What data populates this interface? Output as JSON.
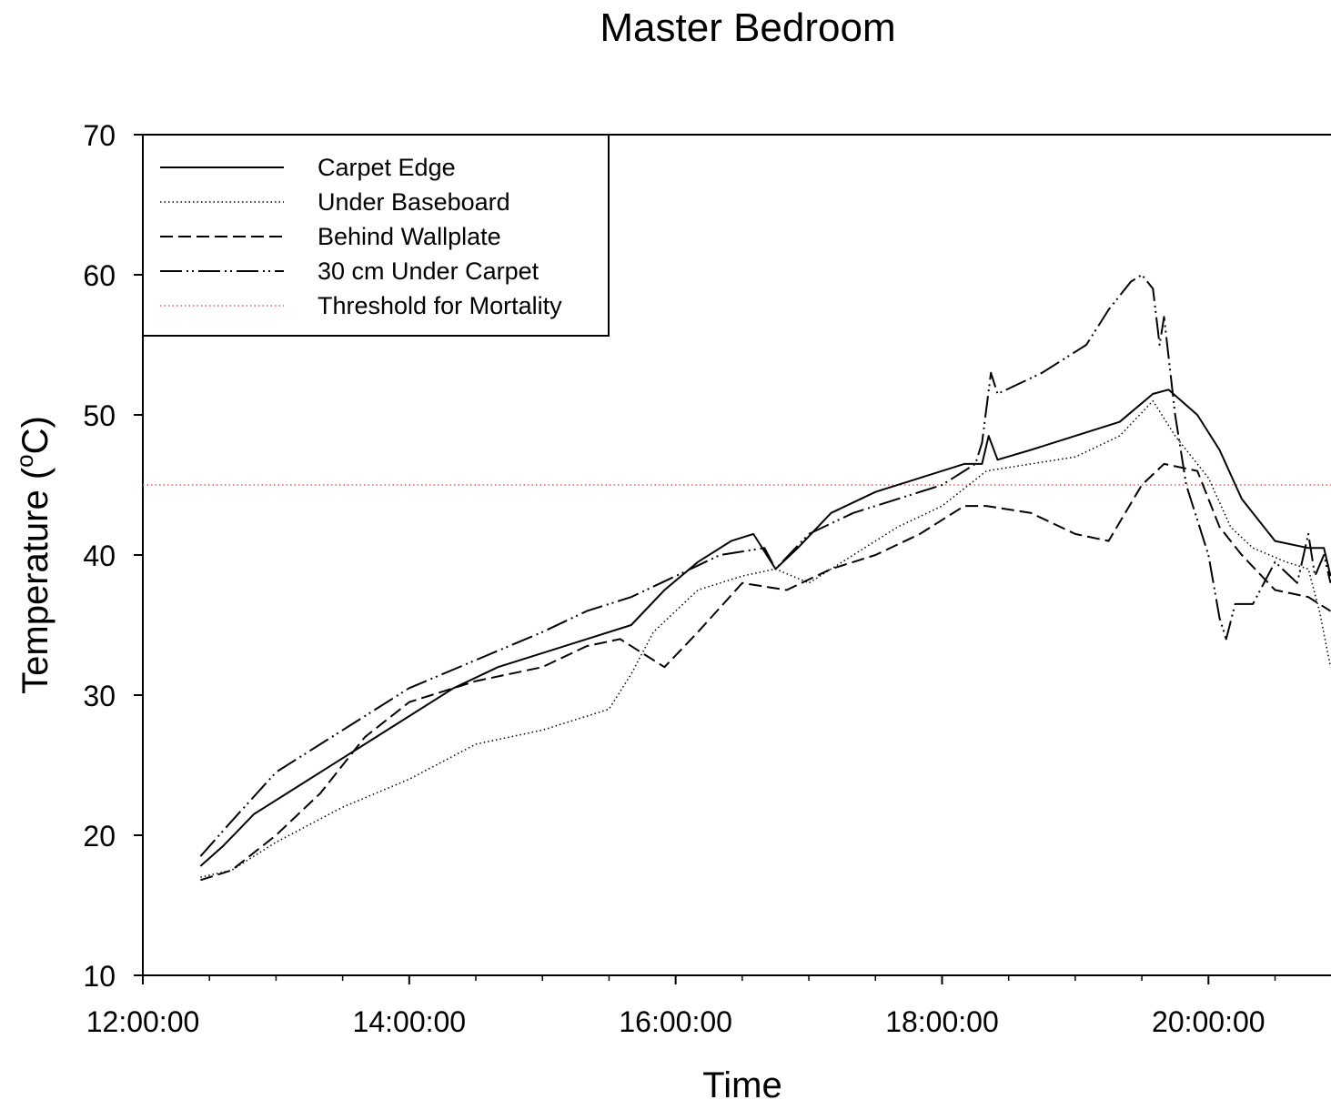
{
  "chart_data": {
    "type": "line",
    "title": "Master Bedroom",
    "xlabel": "Time",
    "ylabel": "Temperature (",
    "ylabel_sup": "o",
    "ylabel_tail": "C)",
    "ylim": [
      10,
      70
    ],
    "xlim_hours": [
      12,
      20.92
    ],
    "y_ticks": [
      10,
      20,
      30,
      40,
      50,
      60,
      70
    ],
    "x_ticks": [
      {
        "label": "12:00:00",
        "hour": 12
      },
      {
        "label": "14:00:00",
        "hour": 14
      },
      {
        "label": "16:00:00",
        "hour": 16
      },
      {
        "label": "18:00:00",
        "hour": 18
      },
      {
        "label": "20:00:00",
        "hour": 20
      }
    ],
    "grid": false,
    "legend_position": "top-left",
    "colors": {
      "series": "#000000",
      "threshold": "#e06060"
    },
    "series": [
      {
        "name": "Carpet Edge",
        "dash": "solid",
        "x": [
          "12:26:00",
          "12:36:00",
          "12:50:00",
          "13:10:00",
          "13:30:00",
          "13:50:00",
          "14:20:00",
          "14:40:00",
          "15:00:00",
          "15:20:00",
          "15:40:00",
          "15:55:00",
          "16:10:00",
          "16:25:00",
          "16:35:00",
          "16:45:00",
          "16:55:00",
          "17:10:00",
          "17:30:00",
          "17:50:00",
          "18:10:00",
          "18:18:00",
          "18:21:00",
          "18:25:00",
          "18:40:00",
          "19:00:00",
          "19:20:00",
          "19:35:00",
          "19:42:00",
          "19:55:00",
          "20:05:00",
          "20:15:00",
          "20:30:00",
          "20:45:00",
          "20:52:00",
          "20:55:00"
        ],
        "y": [
          17.8,
          19.2,
          21.5,
          23.5,
          25.5,
          27.5,
          30.5,
          32.0,
          33.0,
          34.0,
          35.0,
          37.5,
          39.5,
          41.0,
          41.5,
          39.0,
          40.5,
          43.0,
          44.5,
          45.5,
          46.5,
          46.5,
          48.5,
          46.8,
          47.5,
          48.5,
          49.5,
          51.5,
          51.8,
          50.0,
          47.5,
          44.0,
          41.0,
          40.5,
          40.5,
          38.5
        ]
      },
      {
        "name": "Under Baseboard",
        "dash": "dotted",
        "x": [
          "12:26:00",
          "12:40:00",
          "13:00:00",
          "13:30:00",
          "14:00:00",
          "14:30:00",
          "15:00:00",
          "15:30:00",
          "15:40:00",
          "15:50:00",
          "16:10:00",
          "16:30:00",
          "16:45:00",
          "17:00:00",
          "17:20:00",
          "17:40:00",
          "18:00:00",
          "18:20:00",
          "18:40:00",
          "19:00:00",
          "19:20:00",
          "19:35:00",
          "19:45:00",
          "20:00:00",
          "20:10:00",
          "20:20:00",
          "20:35:00",
          "20:45:00",
          "20:50:00",
          "20:55:00"
        ],
        "y": [
          17.0,
          17.5,
          19.5,
          22.0,
          24.0,
          26.5,
          27.5,
          29.0,
          31.5,
          34.5,
          37.5,
          38.5,
          39.0,
          38.0,
          40.0,
          42.0,
          43.5,
          46.0,
          46.5,
          47.0,
          48.5,
          51.0,
          48.5,
          45.5,
          42.0,
          40.5,
          39.5,
          39.0,
          36.0,
          32.0
        ]
      },
      {
        "name": "Behind Wallplate",
        "dash": "dashed",
        "x": [
          "12:26:00",
          "12:40:00",
          "13:00:00",
          "13:20:00",
          "13:40:00",
          "14:00:00",
          "14:30:00",
          "15:00:00",
          "15:20:00",
          "15:35:00",
          "15:45:00",
          "15:55:00",
          "16:10:00",
          "16:30:00",
          "16:50:00",
          "17:10:00",
          "17:30:00",
          "17:50:00",
          "18:10:00",
          "18:20:00",
          "18:40:00",
          "19:00:00",
          "19:15:00",
          "19:30:00",
          "19:40:00",
          "19:55:00",
          "20:05:00",
          "20:15:00",
          "20:30:00",
          "20:45:00",
          "20:55:00"
        ],
        "y": [
          16.8,
          17.5,
          20.0,
          23.0,
          27.0,
          29.5,
          31.0,
          32.0,
          33.5,
          34.0,
          33.0,
          32.0,
          34.5,
          38.0,
          37.5,
          39.0,
          40.0,
          41.5,
          43.5,
          43.5,
          43.0,
          41.5,
          41.0,
          45.0,
          46.5,
          46.0,
          42.0,
          40.0,
          37.5,
          37.0,
          36.0
        ]
      },
      {
        "name": "30 cm Under Carpet",
        "dash": "dashdotdot",
        "x": [
          "12:26:00",
          "12:40:00",
          "13:00:00",
          "13:20:00",
          "13:40:00",
          "14:00:00",
          "14:30:00",
          "15:00:00",
          "15:20:00",
          "15:40:00",
          "16:00:00",
          "16:20:00",
          "16:40:00",
          "16:45:00",
          "17:00:00",
          "17:20:00",
          "17:40:00",
          "18:00:00",
          "18:15:00",
          "18:18:00",
          "18:22:00",
          "18:25:00",
          "18:45:00",
          "19:05:00",
          "19:15:00",
          "19:25:00",
          "19:30:00",
          "19:35:00",
          "19:38:00",
          "19:40:00",
          "19:45:00",
          "19:50:00",
          "20:00:00",
          "20:05:00",
          "20:08:00",
          "20:12:00",
          "20:20:00",
          "20:30:00",
          "20:40:00",
          "20:45:00",
          "20:48:00",
          "20:52:00",
          "20:55:00"
        ],
        "y": [
          18.5,
          21.0,
          24.5,
          26.5,
          28.5,
          30.5,
          32.5,
          34.5,
          36.0,
          37.0,
          38.5,
          40.0,
          40.5,
          39.0,
          41.5,
          43.0,
          44.0,
          45.0,
          46.5,
          48.0,
          53.0,
          51.5,
          53.0,
          55.0,
          57.5,
          59.5,
          60.0,
          59.0,
          55.0,
          57.0,
          50.0,
          45.0,
          40.0,
          35.5,
          34.0,
          36.5,
          36.5,
          39.5,
          38.0,
          41.5,
          38.5,
          40.0,
          38.0
        ]
      }
    ],
    "threshold": {
      "name": "Threshold for Mortality",
      "value": 45,
      "dash": "dotted"
    }
  }
}
